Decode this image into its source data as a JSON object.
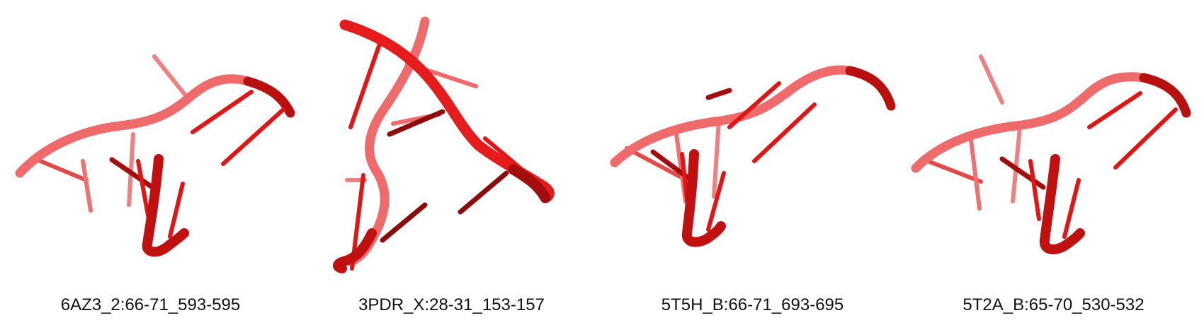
{
  "colors": {
    "backbone": "#e61c1c",
    "backbone_dark": "#a30d0d",
    "backbone_faded": "#ef6b6b",
    "base": "#e21414",
    "base_faded": "#f08080",
    "base_dark": "#8e0b0b"
  },
  "panels": [
    {
      "label": "6AZ3_2:66-71_593-595"
    },
    {
      "label": "3PDR_X:28-31_153-157"
    },
    {
      "label": "5T5H_B:66-71_693-695"
    },
    {
      "label": "5T2A_B:65-70_530-532"
    }
  ]
}
